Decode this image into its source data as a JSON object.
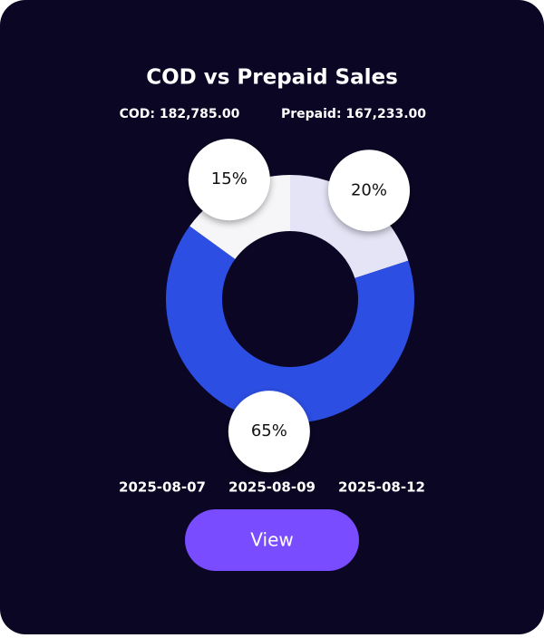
{
  "chart_data": {
    "type": "donut",
    "title": "COD vs Prepaid Sales",
    "annotations": [
      "COD: 182,785.00",
      "Prepaid: 167,233.00"
    ],
    "categories": [
      null,
      null,
      null
    ],
    "values": [
      20,
      65,
      15
    ],
    "value_labels": [
      "20%",
      "65%",
      "15%"
    ],
    "colors": [
      "#e4e4f6",
      "#2d4ee3",
      "#f6f6f8"
    ]
  },
  "dates": [
    "2025-08-07",
    "2025-08-09",
    "2025-08-12"
  ],
  "button": {
    "label": "View"
  }
}
